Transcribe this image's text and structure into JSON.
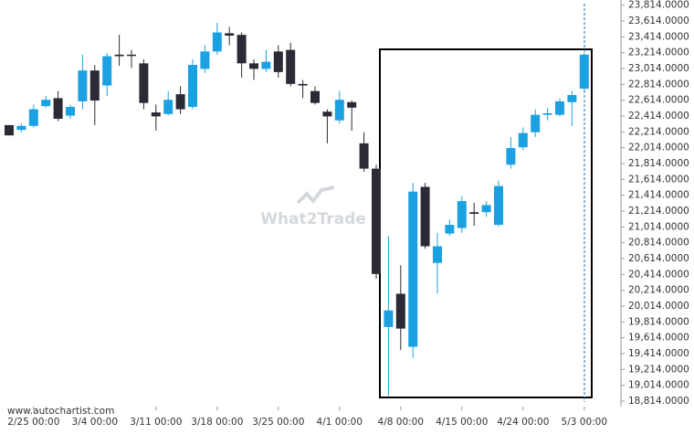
{
  "chart_data": {
    "type": "candlestick",
    "source": "www.autochartist.com",
    "watermark": "What2Trade",
    "up_color": "#1ba1e2",
    "down_color": "#2b2b36",
    "categories": [
      null,
      null,
      "2/25 00:00",
      null,
      null,
      null,
      null,
      "3/4 00:00",
      null,
      null,
      null,
      null,
      "3/11 00:00",
      null,
      null,
      null,
      null,
      "3/18 00:00",
      null,
      null,
      null,
      null,
      "3/25 00:00",
      null,
      null,
      null,
      null,
      "4/1 00:00",
      null,
      null,
      null,
      null,
      "4/8 00:00",
      null,
      null,
      null,
      null,
      "4/15 00:00",
      null,
      null,
      null,
      null,
      "4/24 00:00",
      null,
      null,
      null,
      null,
      "5/3 00:00"
    ],
    "open": [
      22300,
      22240,
      22290,
      22540,
      22640,
      22420,
      22600,
      22990,
      22800,
      23190,
      23190,
      23080,
      22460,
      22440,
      22690,
      22530,
      23010,
      23230,
      23460,
      23440,
      23080,
      23010,
      23230,
      23250,
      22820,
      22730,
      22470,
      22360,
      22590,
      22070,
      21750,
      19750,
      20170,
      19500,
      21520,
      20560,
      20930,
      21000,
      21200,
      21200,
      21040,
      21800,
      22020,
      22210,
      22430,
      22430,
      22590,
      22760
    ],
    "high": [
      22300,
      22320,
      22560,
      22670,
      22730,
      22560,
      23190,
      23060,
      23210,
      23440,
      23250,
      23130,
      22560,
      22730,
      22790,
      23130,
      23310,
      23590,
      23540,
      23470,
      23130,
      23250,
      23310,
      23340,
      22870,
      22790,
      22500,
      22730,
      22610,
      22210,
      21800,
      20900,
      20530,
      21570,
      21570,
      20940,
      21110,
      21400,
      21320,
      21340,
      21600,
      22150,
      22270,
      22500,
      22520,
      22640,
      22730,
      23210
    ],
    "low": [
      22170,
      22210,
      22270,
      22520,
      22350,
      22380,
      22500,
      22300,
      22670,
      23050,
      23020,
      22500,
      22230,
      22420,
      22440,
      22500,
      22960,
      23190,
      23310,
      22900,
      22870,
      22970,
      22900,
      22790,
      22640,
      22560,
      22070,
      22320,
      22230,
      21710,
      20360,
      18880,
      19460,
      19360,
      20740,
      20170,
      20900,
      20940,
      21030,
      21140,
      21020,
      21750,
      21980,
      22150,
      22360,
      22410,
      22290,
      22730
    ],
    "close": [
      22170,
      22290,
      22500,
      22620,
      22380,
      22530,
      22990,
      22610,
      23170,
      23170,
      23180,
      22580,
      22410,
      22620,
      22500,
      23060,
      23230,
      23470,
      23430,
      23080,
      23010,
      23100,
      22970,
      22820,
      22800,
      22580,
      22410,
      22620,
      22520,
      21750,
      20420,
      19960,
      19730,
      21460,
      20770,
      20770,
      21040,
      21340,
      21180,
      21290,
      21530,
      22010,
      22200,
      22430,
      22450,
      22600,
      22680,
      23190
    ],
    "ylim": [
      18745,
      23880
    ],
    "yticks": [
      {
        "value": 23814,
        "label": "23,814.0000"
      },
      {
        "value": 23614,
        "label": "23,614.0000"
      },
      {
        "value": 23414,
        "label": "23,414.0000"
      },
      {
        "value": 23214,
        "label": "23,214.0000"
      },
      {
        "value": 23014,
        "label": "23,014.0000"
      },
      {
        "value": 22814,
        "label": "22,814.0000"
      },
      {
        "value": 22614,
        "label": "22,614.0000"
      },
      {
        "value": 22414,
        "label": "22,414.0000"
      },
      {
        "value": 22214,
        "label": "22,214.0000"
      },
      {
        "value": 22014,
        "label": "22,014.0000"
      },
      {
        "value": 21814,
        "label": "21,814.0000"
      },
      {
        "value": 21614,
        "label": "21,614.0000"
      },
      {
        "value": 21414,
        "label": "21,414.0000"
      },
      {
        "value": 21214,
        "label": "21,214.0000"
      },
      {
        "value": 21014,
        "label": "21,014.0000"
      },
      {
        "value": 20814,
        "label": "20,814.0000"
      },
      {
        "value": 20614,
        "label": "20,614.0000"
      },
      {
        "value": 20414,
        "label": "20,414.0000"
      },
      {
        "value": 20214,
        "label": "20,214.0000"
      },
      {
        "value": 20014,
        "label": "20,014.0000"
      },
      {
        "value": 19814,
        "label": "19,814.0000"
      },
      {
        "value": 19614,
        "label": "19,614.0000"
      },
      {
        "value": 19414,
        "label": "19,414.0000"
      },
      {
        "value": 19214,
        "label": "19,214.0000"
      },
      {
        "value": 19014,
        "label": "19,014.0000"
      },
      {
        "value": 18814,
        "label": "18,814.0000"
      }
    ]
  }
}
